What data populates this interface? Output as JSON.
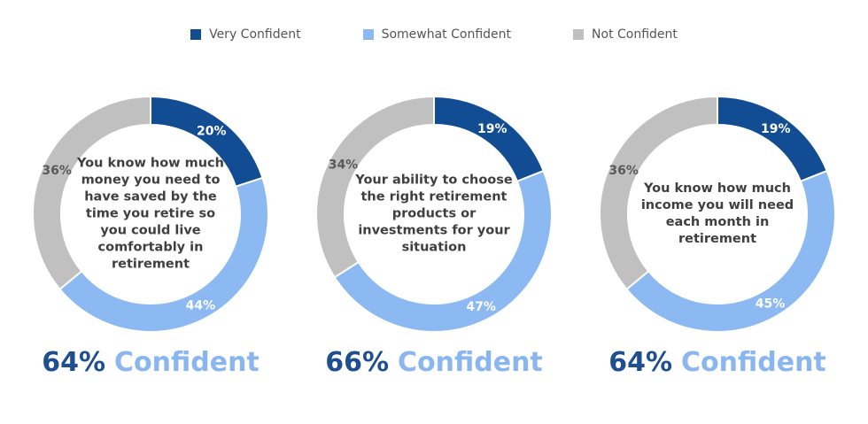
{
  "legend": [
    {
      "label": "Very Confident",
      "color": "#124c93"
    },
    {
      "label": "Somewhat Confident",
      "color": "#8db9f2"
    },
    {
      "label": "Not Confident",
      "color": "#c0c0c0"
    }
  ],
  "chart_data": [
    {
      "type": "pie",
      "donut": true,
      "center_text": "You know how much money you need to have saved by the time you retire so you could live comfortably in retirement",
      "categories": [
        "Very Confident",
        "Somewhat Confident",
        "Not Confident"
      ],
      "values": [
        20,
        44,
        36
      ],
      "labels": [
        "20%",
        "44%",
        "36%"
      ],
      "summary": {
        "percent": "64%",
        "word": "Confident"
      }
    },
    {
      "type": "pie",
      "donut": true,
      "center_text": "Your ability to choose the right retirement products or investments for your situation",
      "categories": [
        "Very Confident",
        "Somewhat Confident",
        "Not Confident"
      ],
      "values": [
        19,
        47,
        34
      ],
      "labels": [
        "19%",
        "47%",
        "34%"
      ],
      "summary": {
        "percent": "66%",
        "word": "Confident"
      }
    },
    {
      "type": "pie",
      "donut": true,
      "center_text": "You know how much income you will need each month in retirement",
      "categories": [
        "Very Confident",
        "Somewhat Confident",
        "Not Confident"
      ],
      "values": [
        19,
        45,
        36
      ],
      "labels": [
        "19%",
        "45%",
        "36%"
      ],
      "summary": {
        "percent": "64%",
        "word": "Confident"
      }
    }
  ]
}
